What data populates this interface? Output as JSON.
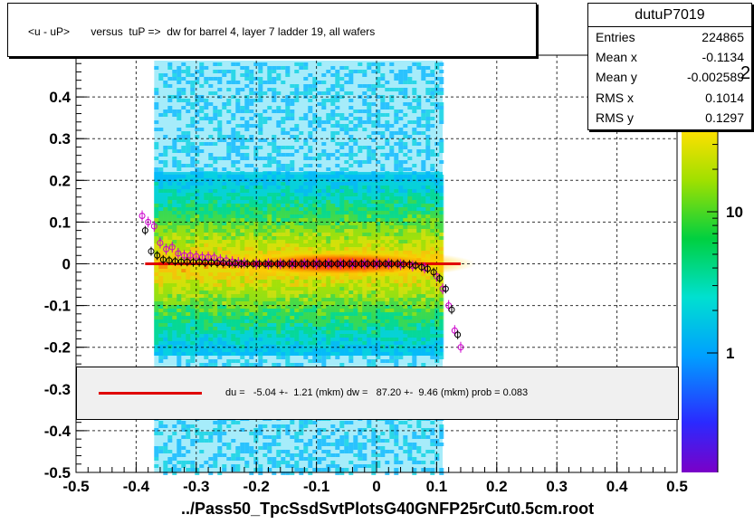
{
  "title": "<u - uP>       versus  tuP =>  dw for barrel 4, layer 7 ladder 19, all wafers",
  "stats": {
    "name": "dutuP7019",
    "rows": [
      {
        "label": "Entries",
        "value": "224865"
      },
      {
        "label": "Mean x",
        "value": "-0.1134"
      },
      {
        "label": "Mean y",
        "value": "-0.002589"
      },
      {
        "label": "RMS x",
        "value": "0.1014"
      },
      {
        "label": "RMS y",
        "value": "0.1297"
      }
    ]
  },
  "fit_text": "du =   -5.04 +-  1.21 (mkm) dw =   87.20 +-  9.46 (mkm) prob = 0.083",
  "xlabel": "../Pass50_TpcSsdSvtPlotsG40GNFP25rCut0.5cm.root",
  "z_partial_label": "2",
  "colors": {
    "fit": "#e00000",
    "profile_black": "#000000",
    "profile_magenta": "#cc00cc",
    "fit_box_bg": "#f0f0f0"
  },
  "chart_data": {
    "type": "heatmap",
    "xlim": [
      -0.5,
      0.5
    ],
    "ylim": [
      -0.5,
      0.5
    ],
    "x_ticks": [
      "-0.5",
      "-0.4",
      "-0.3",
      "-0.2",
      "-0.1",
      "0",
      "0.1",
      "0.2",
      "0.3",
      "0.4",
      "0.5"
    ],
    "y_ticks": [
      "-0.5",
      "-0.4",
      "-0.3",
      "-0.2",
      "-0.1",
      "0",
      "0.1",
      "0.2",
      "0.3",
      "0.4"
    ],
    "z_ticks": [
      "1",
      "10"
    ],
    "z_scale": "log",
    "grid": true,
    "data_x_range": [
      -0.37,
      0.11
    ],
    "profile_black": [
      {
        "x": -0.385,
        "y": 0.08
      },
      {
        "x": -0.375,
        "y": 0.03
      },
      {
        "x": -0.365,
        "y": 0.02
      },
      {
        "x": -0.355,
        "y": 0.01
      },
      {
        "x": -0.345,
        "y": 0.008
      },
      {
        "x": -0.335,
        "y": 0.006
      },
      {
        "x": -0.325,
        "y": 0.005
      },
      {
        "x": -0.315,
        "y": 0.005
      },
      {
        "x": -0.305,
        "y": 0.004
      },
      {
        "x": -0.295,
        "y": 0.004
      },
      {
        "x": -0.285,
        "y": 0.003
      },
      {
        "x": -0.275,
        "y": 0.003
      },
      {
        "x": -0.265,
        "y": 0.002
      },
      {
        "x": -0.255,
        "y": 0.002
      },
      {
        "x": -0.245,
        "y": 0.001
      },
      {
        "x": -0.235,
        "y": 0.001
      },
      {
        "x": -0.225,
        "y": 0.0
      },
      {
        "x": -0.215,
        "y": 0.0
      },
      {
        "x": -0.205,
        "y": 0.0
      },
      {
        "x": -0.195,
        "y": 0.0
      },
      {
        "x": -0.185,
        "y": 0.0
      },
      {
        "x": -0.175,
        "y": 0.0
      },
      {
        "x": -0.165,
        "y": 0.0
      },
      {
        "x": -0.155,
        "y": 0.0
      },
      {
        "x": -0.145,
        "y": 0.0
      },
      {
        "x": -0.135,
        "y": 0.0
      },
      {
        "x": -0.125,
        "y": 0.0
      },
      {
        "x": -0.115,
        "y": 0.0
      },
      {
        "x": -0.105,
        "y": 0.0
      },
      {
        "x": -0.095,
        "y": 0.0
      },
      {
        "x": -0.085,
        "y": 0.0
      },
      {
        "x": -0.075,
        "y": 0.0
      },
      {
        "x": -0.065,
        "y": 0.0
      },
      {
        "x": -0.055,
        "y": 0.0
      },
      {
        "x": -0.045,
        "y": 0.0
      },
      {
        "x": -0.035,
        "y": 0.0
      },
      {
        "x": -0.025,
        "y": 0.0
      },
      {
        "x": -0.015,
        "y": 0.0
      },
      {
        "x": -0.005,
        "y": 0.0
      },
      {
        "x": 0.005,
        "y": 0.0
      },
      {
        "x": 0.015,
        "y": 0.0
      },
      {
        "x": 0.025,
        "y": 0.0
      },
      {
        "x": 0.035,
        "y": 0.0
      },
      {
        "x": 0.045,
        "y": -0.001
      },
      {
        "x": 0.055,
        "y": -0.002
      },
      {
        "x": 0.065,
        "y": -0.004
      },
      {
        "x": 0.075,
        "y": -0.008
      },
      {
        "x": 0.085,
        "y": -0.012
      },
      {
        "x": 0.095,
        "y": -0.02
      },
      {
        "x": 0.105,
        "y": -0.035
      },
      {
        "x": 0.115,
        "y": -0.06
      },
      {
        "x": 0.125,
        "y": -0.11
      },
      {
        "x": 0.135,
        "y": -0.17
      }
    ],
    "profile_magenta": [
      {
        "x": -0.39,
        "y": 0.115
      },
      {
        "x": -0.38,
        "y": 0.1
      },
      {
        "x": -0.37,
        "y": 0.09
      },
      {
        "x": -0.36,
        "y": 0.05
      },
      {
        "x": -0.35,
        "y": 0.035
      },
      {
        "x": -0.34,
        "y": 0.04
      },
      {
        "x": -0.33,
        "y": 0.025
      },
      {
        "x": -0.32,
        "y": 0.02
      },
      {
        "x": -0.31,
        "y": 0.02
      },
      {
        "x": -0.3,
        "y": 0.018
      },
      {
        "x": -0.29,
        "y": 0.016
      },
      {
        "x": -0.28,
        "y": 0.016
      },
      {
        "x": -0.27,
        "y": 0.015
      },
      {
        "x": -0.26,
        "y": 0.01
      },
      {
        "x": -0.25,
        "y": 0.008
      },
      {
        "x": -0.24,
        "y": 0.005
      },
      {
        "x": -0.23,
        "y": 0.003
      },
      {
        "x": -0.22,
        "y": 0.002
      },
      {
        "x": -0.2,
        "y": 0.0
      },
      {
        "x": -0.18,
        "y": 0.0
      },
      {
        "x": -0.16,
        "y": 0.0
      },
      {
        "x": -0.14,
        "y": 0.0
      },
      {
        "x": -0.12,
        "y": 0.0
      },
      {
        "x": -0.1,
        "y": 0.0
      },
      {
        "x": -0.08,
        "y": 0.0
      },
      {
        "x": -0.06,
        "y": 0.0
      },
      {
        "x": -0.04,
        "y": 0.0
      },
      {
        "x": -0.02,
        "y": 0.0
      },
      {
        "x": 0.0,
        "y": 0.0
      },
      {
        "x": 0.02,
        "y": 0.0
      },
      {
        "x": 0.04,
        "y": -0.002
      },
      {
        "x": 0.06,
        "y": -0.005
      },
      {
        "x": 0.08,
        "y": -0.01
      },
      {
        "x": 0.1,
        "y": -0.03
      },
      {
        "x": 0.11,
        "y": -0.06
      },
      {
        "x": 0.12,
        "y": -0.1
      },
      {
        "x": 0.13,
        "y": -0.16
      },
      {
        "x": 0.14,
        "y": -0.2
      }
    ],
    "fit_line": {
      "x": [
        -0.385,
        0.14
      ],
      "y": [
        0.0,
        0.0
      ]
    }
  }
}
